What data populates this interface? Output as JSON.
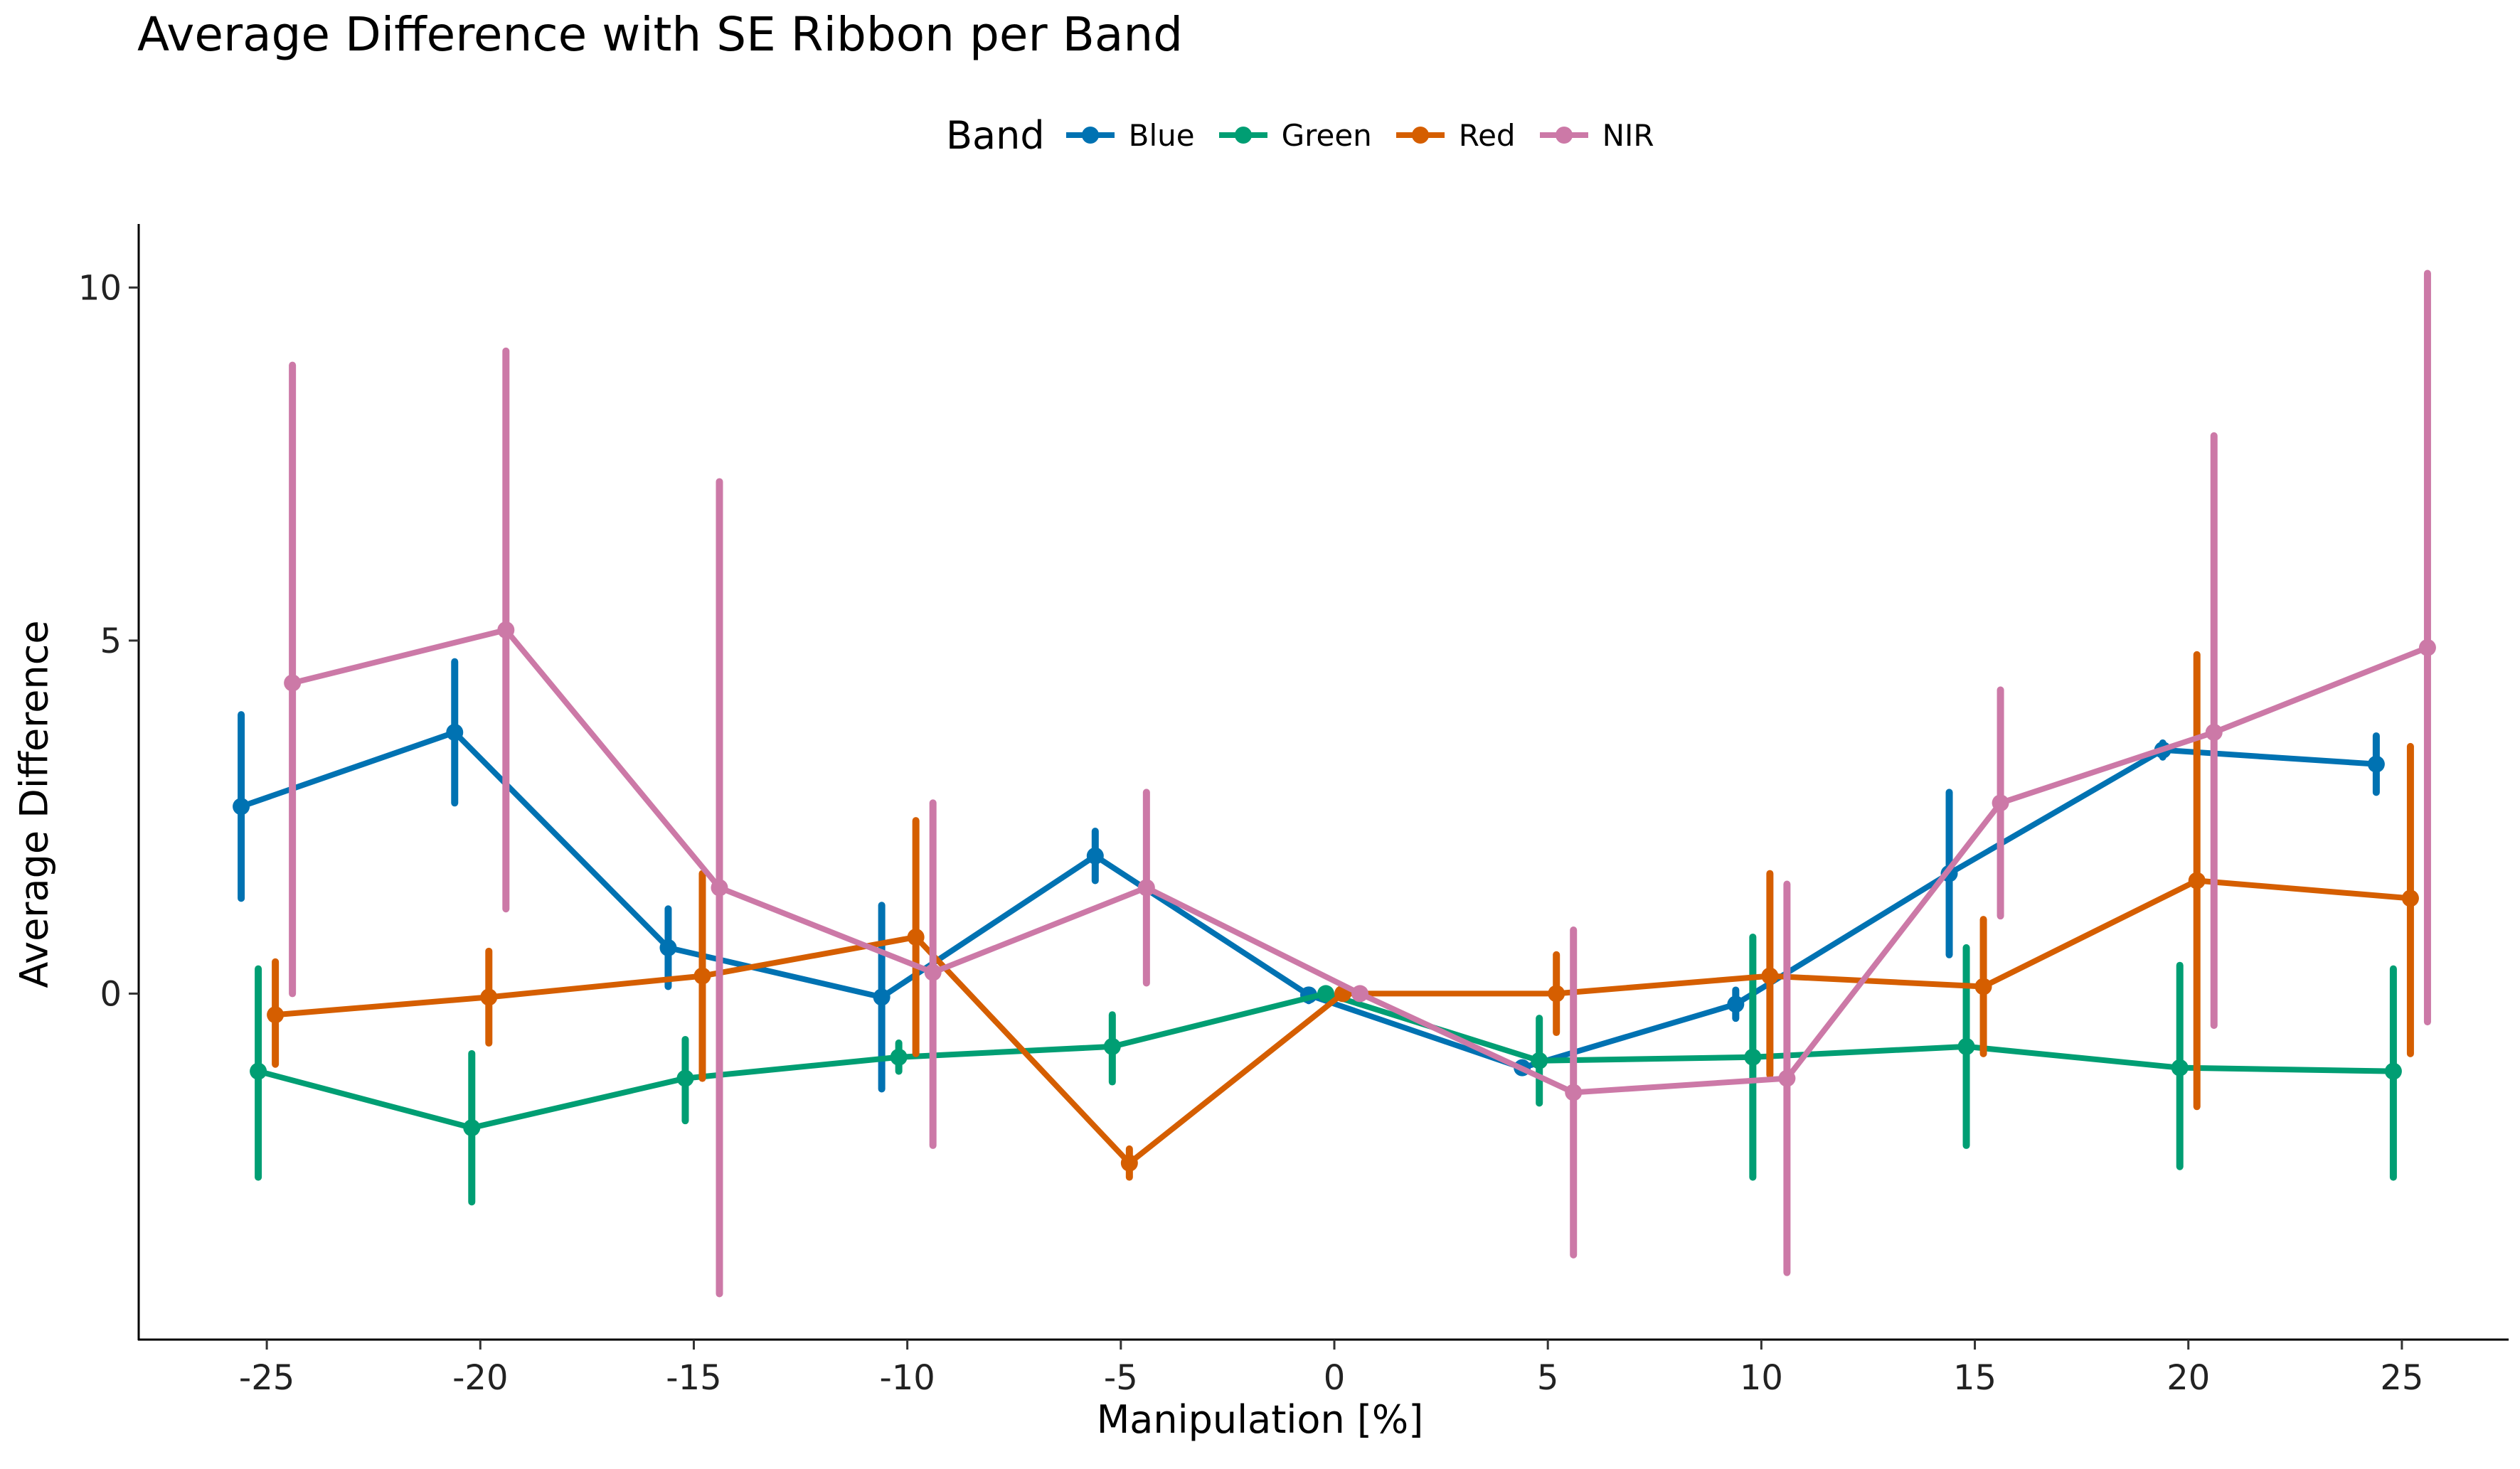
{
  "chart_data": {
    "type": "line",
    "title": "Average Difference with SE Ribbon per Band",
    "xlabel": "Manipulation [%]",
    "ylabel": "Average Difference",
    "legend_title": "Band",
    "legend_position": "top",
    "grid": false,
    "error_bars": true,
    "x_ticks": [
      -25,
      -20,
      -15,
      -10,
      -5,
      0,
      5,
      10,
      15,
      20,
      25
    ],
    "x_tick_labels": [
      "-25",
      "-20",
      "-15",
      "-10",
      "-5",
      "0",
      "5",
      "10",
      "15",
      "20",
      "25"
    ],
    "y_ticks": [
      0,
      5,
      10
    ],
    "y_tick_labels": [
      "0",
      "5",
      "10"
    ],
    "xlim": [
      -28,
      27.5
    ],
    "ylim": [
      -4.9,
      10.9
    ],
    "x": [
      -25,
      -20,
      -15,
      -10,
      -5,
      0,
      5,
      10,
      15,
      20,
      25
    ],
    "series": [
      {
        "name": "Blue",
        "color": "#0072B2",
        "dodge": -0.6,
        "values": [
          2.65,
          3.7,
          0.65,
          -0.05,
          1.95,
          -0.02,
          -1.05,
          -0.15,
          1.7,
          3.45,
          3.25
        ],
        "lower": [
          1.35,
          2.7,
          0.1,
          -1.35,
          1.6,
          -0.1,
          -1.1,
          -0.35,
          0.55,
          3.35,
          2.85
        ],
        "upper": [
          3.95,
          4.7,
          1.2,
          1.25,
          2.3,
          0.05,
          -1.0,
          0.05,
          2.85,
          3.55,
          3.65
        ]
      },
      {
        "name": "Green",
        "color": "#009E73",
        "dodge": -0.2,
        "values": [
          -1.1,
          -1.9,
          -1.2,
          -0.9,
          -0.75,
          0.0,
          -0.95,
          -0.9,
          -0.75,
          -1.05,
          -1.1
        ],
        "lower": [
          -2.6,
          -2.95,
          -1.8,
          -1.1,
          -1.25,
          -0.05,
          -1.55,
          -2.6,
          -2.15,
          -2.45,
          -2.6
        ],
        "upper": [
          0.35,
          -0.85,
          -0.65,
          -0.7,
          -0.3,
          0.05,
          -0.35,
          0.8,
          0.65,
          0.4,
          0.35
        ]
      },
      {
        "name": "Red",
        "color": "#D55E00",
        "dodge": 0.2,
        "values": [
          -0.3,
          -0.05,
          0.25,
          0.8,
          -2.4,
          0.0,
          0.0,
          0.25,
          0.1,
          1.6,
          1.35
        ],
        "lower": [
          -1.0,
          -0.7,
          -1.2,
          -0.85,
          -2.6,
          -0.05,
          -0.55,
          -1.15,
          -0.85,
          -1.6,
          -0.85
        ],
        "upper": [
          0.45,
          0.6,
          1.7,
          2.45,
          -2.2,
          0.05,
          0.55,
          1.7,
          1.05,
          4.8,
          3.5
        ]
      },
      {
        "name": "NIR",
        "color": "#CC79A7",
        "dodge": 0.6,
        "values": [
          4.4,
          5.15,
          1.5,
          0.3,
          1.5,
          0.0,
          -1.4,
          -1.2,
          2.7,
          3.7,
          4.9
        ],
        "lower": [
          0.0,
          1.2,
          -4.25,
          -2.15,
          0.15,
          -0.05,
          -3.7,
          -3.95,
          1.1,
          -0.45,
          -0.4
        ],
        "upper": [
          8.9,
          9.1,
          7.25,
          2.7,
          2.85,
          0.05,
          0.9,
          1.55,
          4.3,
          7.9,
          10.2
        ]
      }
    ]
  }
}
